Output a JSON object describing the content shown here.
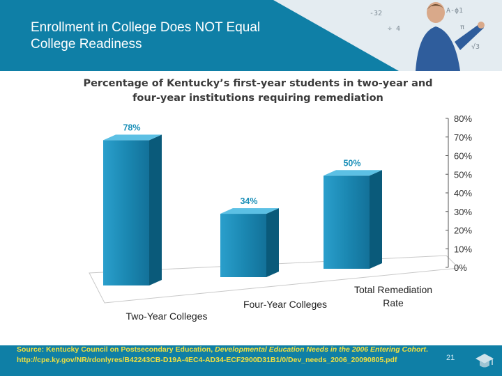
{
  "slide": {
    "title": "Enrollment in College Does NOT Equal College Readiness",
    "page_number": "21",
    "colors": {
      "header_blue": "#0f7fa6",
      "source_text": "#f0e040",
      "bar_front": "#1a86b0",
      "bar_side": "#0a5a7a",
      "bar_top": "#5cc0e4",
      "value_label": "#1a8fb8"
    },
    "icons": {
      "photo": "teacher-at-chalkboard-image",
      "logo": "graduation-cap-icon"
    }
  },
  "source": {
    "label": "Source: Kentucky Council on Postsecondary Education,",
    "report": "Developmental Education Needs in the 2006 Entering Cohort",
    "url": ". http://cpe.ky.gov/NR/rdonlyres/B42243CB-D19A-4EC4-AD34-ECF2900D31B1/0/Dev_needs_2006_20090805.pdf"
  },
  "chart_data": {
    "type": "bar",
    "style": "3d",
    "title": "Percentage of Kentucky’s first-year students in two-year and four-year institutions requiring remediation",
    "categories": [
      "Two-Year Colleges",
      "Four-Year Colleges",
      "Total Remediation Rate"
    ],
    "values": [
      78,
      34,
      50
    ],
    "data_labels": [
      "78%",
      "34%",
      "50%"
    ],
    "ylim": [
      0,
      80
    ],
    "yticks": [
      "0%",
      "10%",
      "20%",
      "30%",
      "40%",
      "50%",
      "60%",
      "70%",
      "80%"
    ],
    "y_axis_position": "right",
    "grid": false,
    "legend": "none"
  }
}
